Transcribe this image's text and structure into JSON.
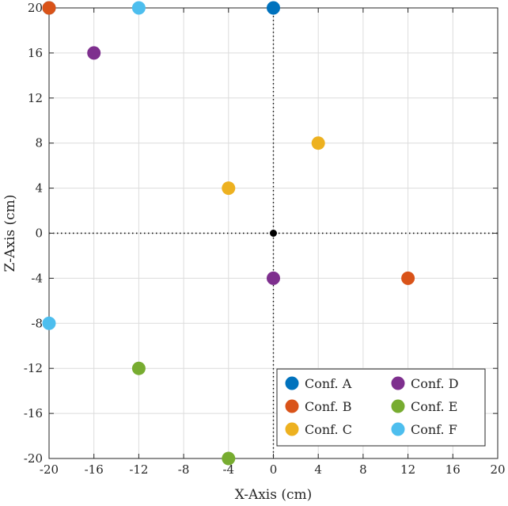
{
  "chart_data": {
    "type": "scatter",
    "title": "",
    "xlabel": "X-Axis (cm)",
    "ylabel": "Z-Axis (cm)",
    "xlim": [
      -20,
      20
    ],
    "ylim": [
      -20,
      20
    ],
    "xticks": [
      -20,
      -16,
      -12,
      -8,
      -4,
      0,
      4,
      8,
      12,
      16,
      20
    ],
    "yticks": [
      -20,
      -16,
      -12,
      -8,
      -4,
      0,
      4,
      8,
      12,
      16,
      20
    ],
    "grid": true,
    "legend_position": "bottom-right",
    "reference_lines": {
      "x": 0,
      "y": 0,
      "style": "dotted"
    },
    "origin_marker": {
      "x": 0,
      "y": 0,
      "color": "#000000"
    },
    "series": [
      {
        "name": "Conf. A",
        "color": "#0072BD",
        "points": [
          [
            -20,
            20
          ],
          [
            0,
            20
          ]
        ]
      },
      {
        "name": "Conf. B",
        "color": "#D95319",
        "points": [
          [
            -20,
            20
          ],
          [
            12,
            -4
          ]
        ]
      },
      {
        "name": "Conf. C",
        "color": "#EDB120",
        "points": [
          [
            -4,
            4
          ],
          [
            4,
            8
          ]
        ]
      },
      {
        "name": "Conf. D",
        "color": "#7E2F8E",
        "points": [
          [
            -16,
            16
          ],
          [
            0,
            -4
          ]
        ]
      },
      {
        "name": "Conf. E",
        "color": "#77AC30",
        "points": [
          [
            -12,
            -12
          ],
          [
            -4,
            -20
          ]
        ]
      },
      {
        "name": "Conf. F",
        "color": "#4DBEEE",
        "points": [
          [
            -12,
            20
          ],
          [
            -20,
            -8
          ]
        ]
      }
    ]
  }
}
